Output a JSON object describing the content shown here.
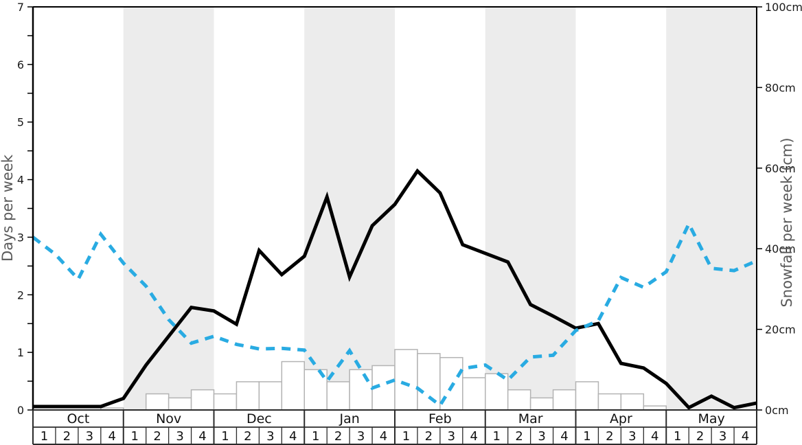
{
  "chart_data": {
    "type": "line+bar",
    "title": "",
    "months": [
      "Oct",
      "Nov",
      "Dec",
      "Jan",
      "Feb",
      "Mar",
      "Apr",
      "May"
    ],
    "week_labels": [
      "1",
      "2",
      "3",
      "4"
    ],
    "weeks_per_month": 4,
    "shaded_month_indices": [
      1,
      3,
      5,
      7
    ],
    "left_axis": {
      "label": "Days per week",
      "min": 0,
      "max": 7,
      "minor_tick_step": 0.5,
      "tick_labels": [
        "0",
        "1",
        "2",
        "3",
        "4",
        "5",
        "6",
        "7"
      ]
    },
    "right_axis": {
      "label": "Snowfall per week (cm)",
      "min": 0,
      "max": 100,
      "tick_values": [
        0,
        20,
        40,
        60,
        80,
        100
      ],
      "tick_labels": [
        "0cm",
        "20cm",
        "40cm",
        "60cm",
        "80cm",
        "100cm"
      ]
    },
    "series": [
      {
        "id": "days-solid-line",
        "type": "line",
        "style": "solid",
        "axis": "left",
        "color": "#000000",
        "values": [
          0.06,
          0.06,
          0.06,
          0.06,
          0.2,
          0.78,
          1.28,
          1.78,
          1.72,
          1.49,
          2.77,
          2.35,
          2.67,
          3.7,
          2.31,
          3.2,
          3.57,
          4.15,
          3.77,
          2.87,
          2.72,
          2.57,
          1.83,
          1.63,
          1.42,
          1.5,
          0.81,
          0.73,
          0.46,
          0.04,
          0.24,
          0.04,
          0.12
        ]
      },
      {
        "id": "days-dashed-line",
        "type": "line",
        "style": "dashed",
        "axis": "left",
        "color": "#29abe2",
        "values": [
          3.0,
          2.7,
          2.27,
          3.05,
          2.55,
          2.15,
          1.57,
          1.16,
          1.28,
          1.14,
          1.06,
          1.07,
          1.04,
          0.5,
          1.03,
          0.38,
          0.52,
          0.38,
          0.08,
          0.72,
          0.78,
          0.52,
          0.92,
          0.95,
          1.38,
          1.55,
          2.3,
          2.13,
          2.4,
          3.23,
          2.46,
          2.42,
          2.59
        ]
      },
      {
        "id": "snowfall-bars",
        "type": "bar",
        "axis": "right",
        "fill": "#ffffff",
        "stroke": "#b3b3b3",
        "values": [
          0,
          0,
          0,
          0.5,
          0,
          4,
          3,
          5,
          4,
          7,
          7,
          12,
          10,
          7,
          10,
          11,
          15,
          14,
          13,
          8,
          9,
          5,
          3,
          5,
          7,
          4,
          4,
          1,
          0,
          0,
          0,
          0
        ]
      }
    ],
    "colors": {
      "band": "#ececec",
      "plot_background": "#ffffff",
      "axis_line": "#000000",
      "tick_label": "#1a1a1a",
      "axis_title": "#595959",
      "table_line": "#2b2b2b",
      "table_text": "#111111"
    }
  }
}
